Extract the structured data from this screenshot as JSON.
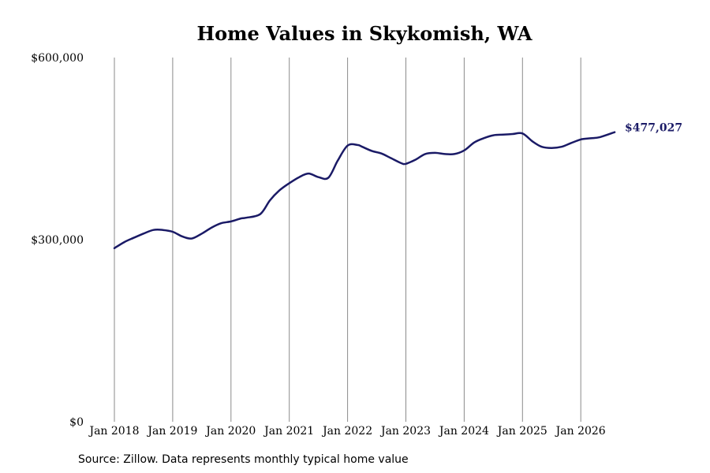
{
  "chart_data": {
    "type": "line",
    "title": "Home Values in Skykomish, WA",
    "source": "Source: Zillow. Data represents monthly typical home value",
    "xlabel": "",
    "ylabel": "",
    "ylim": [
      0,
      600000
    ],
    "y_ticks": [
      {
        "value": 0,
        "label": "$0"
      },
      {
        "value": 300000,
        "label": "$300,000"
      },
      {
        "value": 600000,
        "label": "$600,000"
      }
    ],
    "x_ticks": [
      {
        "value": 2018.0,
        "label": "Jan 2018"
      },
      {
        "value": 2019.0,
        "label": "Jan 2019"
      },
      {
        "value": 2020.0,
        "label": "Jan 2020"
      },
      {
        "value": 2021.0,
        "label": "Jan 2021"
      },
      {
        "value": 2022.0,
        "label": "Jan 2022"
      },
      {
        "value": 2023.0,
        "label": "Jan 2023"
      },
      {
        "value": 2024.0,
        "label": "Jan 2024"
      },
      {
        "value": 2025.0,
        "label": "Jan 2025"
      },
      {
        "value": 2026.0,
        "label": "Jan 2026"
      }
    ],
    "grid": "vertical",
    "line_color": "#1a1a66",
    "end_label": "$477,027",
    "series": [
      {
        "x": [
          2018.0,
          2018.17,
          2018.33,
          2018.5,
          2018.67,
          2018.83,
          2019.0,
          2019.17,
          2019.33,
          2019.5,
          2019.67,
          2019.83,
          2020.0,
          2020.17,
          2020.25,
          2020.5,
          2020.67,
          2020.83,
          2021.0,
          2021.17,
          2021.33,
          2021.5,
          2021.67,
          2021.83,
          2022.0,
          2022.17,
          2022.25,
          2022.42,
          2022.58,
          2022.75,
          2022.92,
          2023.0,
          2023.17,
          2023.33,
          2023.5,
          2023.67,
          2023.83,
          2024.0,
          2024.17,
          2024.33,
          2024.5,
          2024.67,
          2024.83,
          2025.0,
          2025.17,
          2025.33,
          2025.5,
          2025.67,
          2025.83,
          2026.0,
          2026.17,
          2026.33,
          2026.58
        ],
        "values": [
          286000,
          296000,
          303000,
          310000,
          316000,
          316000,
          313000,
          305000,
          302000,
          310000,
          320000,
          327000,
          330000,
          335000,
          336000,
          342000,
          365000,
          381000,
          393000,
          403000,
          409000,
          403000,
          402000,
          430000,
          455000,
          456000,
          453000,
          446000,
          442000,
          434000,
          426000,
          425000,
          432000,
          441000,
          443000,
          441000,
          441000,
          447000,
          460000,
          467000,
          472000,
          473000,
          474000,
          475000,
          462000,
          453000,
          451000,
          453000,
          459000,
          465000,
          467000,
          469000,
          477027
        ]
      }
    ]
  }
}
